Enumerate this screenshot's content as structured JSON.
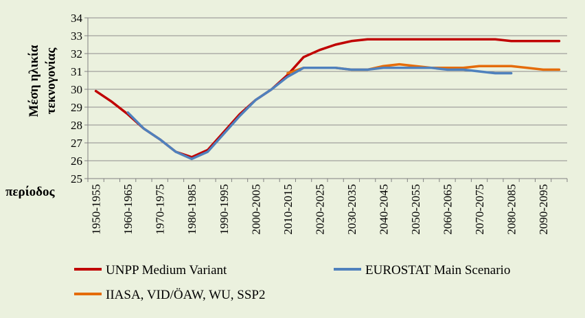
{
  "chart_data": {
    "type": "line",
    "ylabel_lines": [
      "Μέση ηλικία",
      "τεκνογονίας"
    ],
    "xlabel": "περίοδος",
    "ylim": [
      25,
      34
    ],
    "yticks": [
      25,
      26,
      27,
      28,
      29,
      30,
      31,
      32,
      33,
      34
    ],
    "xticklabels": [
      "1950-1955",
      "1960-1965",
      "1970-1975",
      "1980-1985",
      "1990-1995",
      "2000-2005",
      "2010-2015",
      "2020-2025",
      "2030-2035",
      "2040-2045",
      "2050-2055",
      "2060-2065",
      "2070-2075",
      "2080-2085",
      "2090-2095"
    ],
    "x_points": [
      "1950-1955",
      "1955-1960",
      "1960-1965",
      "1965-1970",
      "1970-1975",
      "1975-1980",
      "1980-1985",
      "1985-1990",
      "1990-1995",
      "1995-2000",
      "2000-2005",
      "2005-2010",
      "2010-2015",
      "2015-2020",
      "2020-2025",
      "2025-2030",
      "2030-2035",
      "2035-2040",
      "2040-2045",
      "2045-2050",
      "2050-2055",
      "2055-2060",
      "2060-2065",
      "2065-2070",
      "2070-2075",
      "2075-2080",
      "2080-2085",
      "2085-2090",
      "2090-2095",
      "2095-2100"
    ],
    "grid": true,
    "legend_position": "bottom",
    "series": [
      {
        "name": "UNPP Medium Variant",
        "color": "#c00000",
        "values": [
          29.9,
          29.3,
          28.6,
          27.8,
          27.2,
          26.5,
          26.2,
          26.6,
          27.6,
          28.6,
          29.4,
          30.0,
          30.8,
          31.8,
          32.2,
          32.5,
          32.7,
          32.8,
          32.8,
          32.8,
          32.8,
          32.8,
          32.8,
          32.8,
          32.8,
          32.8,
          32.7,
          32.7,
          32.7,
          32.7
        ]
      },
      {
        "name": "EUROSTAT Main Scenario",
        "color": "#4f81bd",
        "values": [
          null,
          null,
          28.7,
          27.8,
          27.2,
          26.5,
          26.1,
          26.5,
          27.5,
          28.5,
          29.4,
          30.0,
          30.7,
          31.2,
          31.2,
          31.2,
          31.1,
          31.1,
          31.2,
          31.2,
          31.2,
          31.2,
          31.1,
          31.1,
          31.0,
          30.9,
          30.9,
          null,
          null,
          null
        ]
      },
      {
        "name": "IIASA, VID/ÖAW, WU, SSP2",
        "color": "#e46c0a",
        "values": [
          null,
          null,
          null,
          null,
          null,
          null,
          null,
          null,
          null,
          null,
          null,
          null,
          30.9,
          31.2,
          31.2,
          31.2,
          31.1,
          31.1,
          31.3,
          31.4,
          31.3,
          31.2,
          31.2,
          31.2,
          31.3,
          31.3,
          31.3,
          31.2,
          31.1,
          31.1
        ]
      }
    ]
  }
}
